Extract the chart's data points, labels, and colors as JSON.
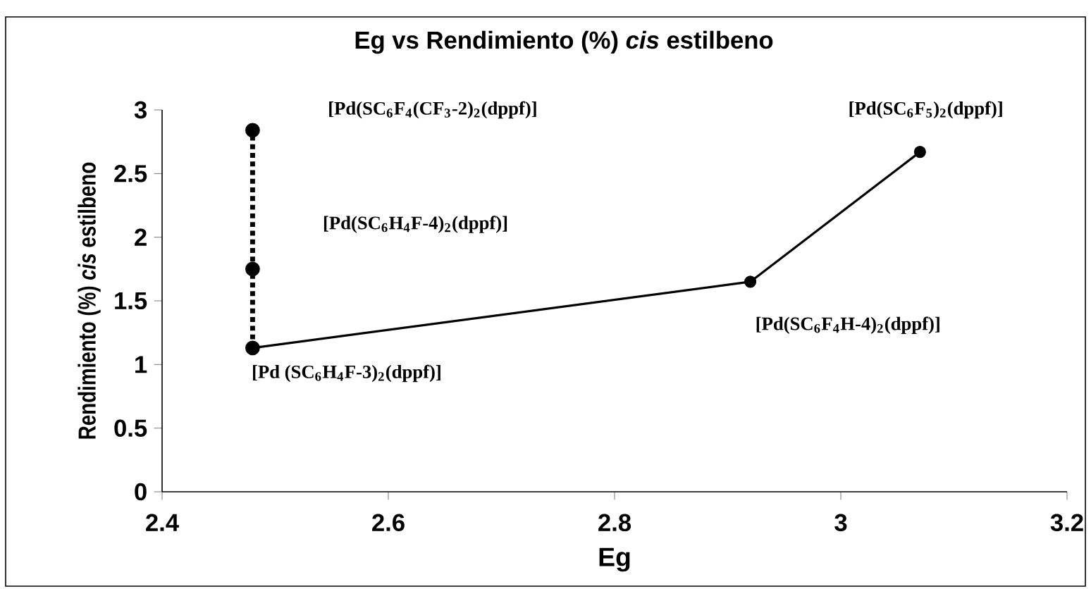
{
  "chart_data": {
    "type": "line",
    "title": "Eg vs Rendimiento (%) *cis* estilbeno",
    "xlabel": "Eg",
    "ylabel": "Rendimiento (%) *cis* estilbeno",
    "series": [
      {
        "color": "#000000",
        "line_style": "solid",
        "x": [
          2.48,
          2.92,
          3.07
        ],
        "values": [
          1.13,
          1.65,
          2.67
        ]
      },
      {
        "color": "#000000",
        "line_style": "dotted",
        "x": [
          2.48,
          2.48,
          2.48
        ],
        "values": [
          1.13,
          1.75,
          2.84
        ]
      }
    ],
    "marker": "circle",
    "grid": false,
    "xlim": [
      2.4,
      3.2
    ],
    "xticks": [
      2.4,
      2.6,
      2.8,
      3,
      3.2
    ],
    "ylim": [
      0,
      3
    ],
    "yticks": [
      0,
      0.5,
      1,
      1.5,
      2,
      2.5,
      3
    ],
    "annotations": [
      "[Pd(SC$_{6}$F$_{4}$(CF$_{3}$-2)$_{2}$(dppf)]",
      "[Pd(SC$_{6}$H$_{4}$F-4)$_{2}$(dppf)]",
      "[Pd (SC$_{6}$H$_{4}$F-3)$_{2}$(dppf)]",
      "[Pd(SC$_{6}$F$_{4}$H-4)$_{2}$(dppf)]",
      "[Pd(SC$_{6}$F$_{5}$)$_{2}$(dppf)]"
    ]
  }
}
